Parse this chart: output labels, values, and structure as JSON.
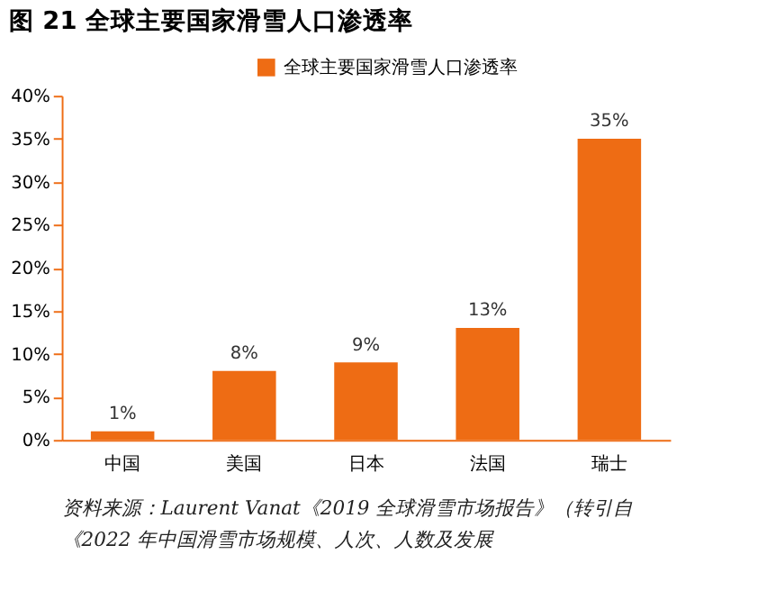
{
  "chart_data": {
    "type": "bar",
    "title": "图 21 全球主要国家滑雪人口渗透率",
    "categories": [
      "中国",
      "美国",
      "日本",
      "法国",
      "瑞士"
    ],
    "series": [
      {
        "name": "全球主要国家滑雪人口渗透率",
        "color": "#ee6c14",
        "values": [
          1,
          8,
          9,
          13,
          35
        ],
        "value_labels": [
          "1%",
          "8%",
          "9%",
          "13%",
          "35%"
        ]
      }
    ],
    "ylim": [
      0,
      40
    ],
    "yticks": [
      {
        "value": 0,
        "label": "0%"
      },
      {
        "value": 5,
        "label": "5%"
      },
      {
        "value": 10,
        "label": "10%"
      },
      {
        "value": 15,
        "label": "15%"
      },
      {
        "value": 20,
        "label": "20%"
      },
      {
        "value": 25,
        "label": "25%"
      },
      {
        "value": 30,
        "label": "30%"
      },
      {
        "value": 35,
        "label": "35%"
      },
      {
        "value": 40,
        "label": "40%"
      }
    ],
    "grid": false,
    "legend": "top",
    "annotations": [
      "资料来源：Laurent Vanat《2019 全球滑雪市场报告》（转引自",
      "《2022 年中国滑雪市场规模、人次、人数及发展"
    ]
  }
}
